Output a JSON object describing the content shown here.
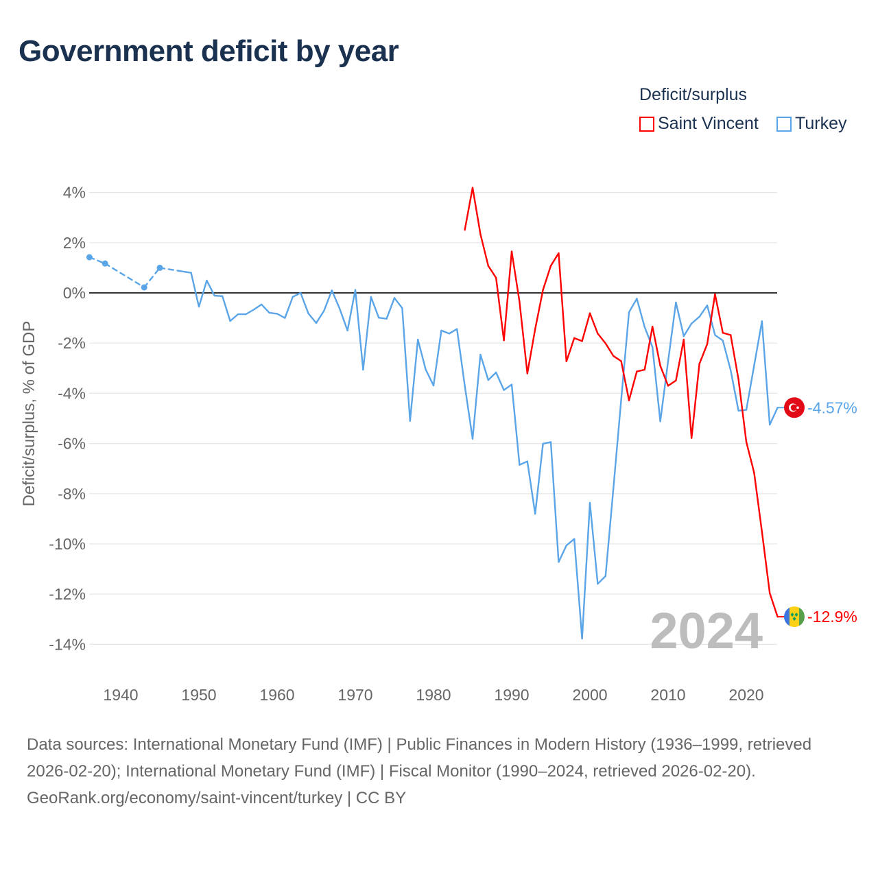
{
  "title": "Government deficit by year",
  "legend": {
    "title": "Deficit/surplus",
    "items": [
      {
        "label": "Saint Vincent",
        "color": "#ff0000"
      },
      {
        "label": "Turkey",
        "color": "#5aa5e8"
      }
    ]
  },
  "chart_data": {
    "type": "line",
    "title": "Government deficit by year",
    "xlabel": "",
    "ylabel": "Deficit/surplus, % of GDP",
    "xlim": [
      1936,
      2024
    ],
    "ylim": [
      -15,
      4.5
    ],
    "x_ticks": [
      1940,
      1950,
      1960,
      1970,
      1980,
      1990,
      2000,
      2010,
      2020
    ],
    "x_tick_labels": [
      "1940",
      "1950",
      "1960",
      "1970",
      "1980",
      "1990",
      "2000",
      "2010",
      "2020"
    ],
    "y_ticks": [
      4,
      2,
      0,
      -2,
      -4,
      -6,
      -8,
      -10,
      -12,
      -14
    ],
    "y_tick_labels": [
      "4%",
      "2%",
      "0%",
      "-2%",
      "-4%",
      "-6%",
      "-8%",
      "-10%",
      "-12%",
      "-14%"
    ],
    "grid": true,
    "legend_position": "top-right",
    "year_watermark": "2024",
    "series": [
      {
        "name": "Turkey",
        "color": "#5aa5e8",
        "end_label": "-4.57%",
        "flag": "turkey-flag",
        "points": [
          [
            1936,
            1.42
          ],
          [
            1938,
            1.17
          ],
          [
            1943,
            0.22
          ],
          [
            1945,
            1.0
          ],
          [
            1948,
            0.85
          ],
          [
            1949,
            0.8
          ],
          [
            1950,
            -0.55
          ],
          [
            1951,
            0.49
          ],
          [
            1952,
            -0.11
          ],
          [
            1953,
            -0.13
          ],
          [
            1954,
            -1.12
          ],
          [
            1955,
            -0.85
          ],
          [
            1956,
            -0.85
          ],
          [
            1957,
            -0.67
          ],
          [
            1958,
            -0.46
          ],
          [
            1959,
            -0.79
          ],
          [
            1960,
            -0.83
          ],
          [
            1961,
            -1.0
          ],
          [
            1962,
            -0.16
          ],
          [
            1963,
            0.0
          ],
          [
            1964,
            -0.82
          ],
          [
            1965,
            -1.2
          ],
          [
            1966,
            -0.71
          ],
          [
            1967,
            0.1
          ],
          [
            1968,
            -0.63
          ],
          [
            1969,
            -1.5
          ],
          [
            1970,
            0.12
          ],
          [
            1971,
            -3.06
          ],
          [
            1972,
            -0.16
          ],
          [
            1973,
            -0.99
          ],
          [
            1974,
            -1.03
          ],
          [
            1975,
            -0.2
          ],
          [
            1976,
            -0.61
          ],
          [
            1977,
            -5.1
          ],
          [
            1978,
            -1.86
          ],
          [
            1979,
            -3.05
          ],
          [
            1980,
            -3.69
          ],
          [
            1981,
            -1.5
          ],
          [
            1982,
            -1.62
          ],
          [
            1983,
            -1.44
          ],
          [
            1984,
            -3.7
          ],
          [
            1985,
            -5.81
          ],
          [
            1986,
            -2.46
          ],
          [
            1987,
            -3.47
          ],
          [
            1988,
            -3.17
          ],
          [
            1989,
            -3.87
          ],
          [
            1990,
            -3.65
          ],
          [
            1991,
            -6.85
          ],
          [
            1992,
            -6.71
          ],
          [
            1993,
            -8.8
          ],
          [
            1994,
            -6.01
          ],
          [
            1995,
            -5.94
          ],
          [
            1996,
            -10.72
          ],
          [
            1997,
            -10.06
          ],
          [
            1998,
            -9.8
          ],
          [
            1999,
            -13.77
          ],
          [
            2000,
            -8.36
          ],
          [
            2001,
            -11.59
          ],
          [
            2002,
            -11.28
          ],
          [
            2003,
            -7.8
          ],
          [
            2004,
            -4.26
          ],
          [
            2005,
            -0.77
          ],
          [
            2006,
            -0.23
          ],
          [
            2007,
            -1.36
          ],
          [
            2008,
            -2.16
          ],
          [
            2009,
            -5.12
          ],
          [
            2010,
            -2.72
          ],
          [
            2011,
            -0.38
          ],
          [
            2012,
            -1.72
          ],
          [
            2013,
            -1.22
          ],
          [
            2014,
            -0.95
          ],
          [
            2015,
            -0.5
          ],
          [
            2016,
            -1.68
          ],
          [
            2017,
            -1.9
          ],
          [
            2018,
            -3.08
          ],
          [
            2019,
            -4.69
          ],
          [
            2020,
            -4.66
          ],
          [
            2021,
            -2.9
          ],
          [
            2022,
            -1.13
          ],
          [
            2023,
            -5.25
          ],
          [
            2024,
            -4.57
          ]
        ]
      },
      {
        "name": "Saint Vincent",
        "color": "#ff0000",
        "end_label": "-12.9%",
        "flag": "saint-vincent-flag",
        "points": [
          [
            1984,
            2.51
          ],
          [
            1985,
            4.19
          ],
          [
            1986,
            2.34
          ],
          [
            1987,
            1.08
          ],
          [
            1988,
            0.6
          ],
          [
            1989,
            -1.89
          ],
          [
            1990,
            1.65
          ],
          [
            1991,
            -0.36
          ],
          [
            1992,
            -3.21
          ],
          [
            1993,
            -1.44
          ],
          [
            1994,
            0.12
          ],
          [
            1995,
            1.08
          ],
          [
            1996,
            1.58
          ],
          [
            1997,
            -2.73
          ],
          [
            1998,
            -1.8
          ],
          [
            1999,
            -1.92
          ],
          [
            2000,
            -0.81
          ],
          [
            2001,
            -1.62
          ],
          [
            2002,
            -2.01
          ],
          [
            2003,
            -2.51
          ],
          [
            2004,
            -2.72
          ],
          [
            2005,
            -4.28
          ],
          [
            2006,
            -3.13
          ],
          [
            2007,
            -3.06
          ],
          [
            2008,
            -1.34
          ],
          [
            2009,
            -2.9
          ],
          [
            2010,
            -3.7
          ],
          [
            2011,
            -3.49
          ],
          [
            2012,
            -1.86
          ],
          [
            2013,
            -5.78
          ],
          [
            2014,
            -2.83
          ],
          [
            2015,
            -2.04
          ],
          [
            2016,
            -0.05
          ],
          [
            2017,
            -1.59
          ],
          [
            2018,
            -1.68
          ],
          [
            2019,
            -3.44
          ],
          [
            2020,
            -5.93
          ],
          [
            2021,
            -7.16
          ],
          [
            2022,
            -9.51
          ],
          [
            2023,
            -11.96
          ],
          [
            2024,
            -12.9
          ]
        ]
      }
    ]
  },
  "footer": {
    "sources": "Data sources: International Monetary Fund (IMF) | Public Finances in Modern History (1936–1999, retrieved 2026-02-20); International Monetary Fund (IMF) | Fiscal Monitor (1990–2024, retrieved 2026-02-20).",
    "credit": "GeoRank.org/economy/saint-vincent/turkey | CC BY"
  }
}
